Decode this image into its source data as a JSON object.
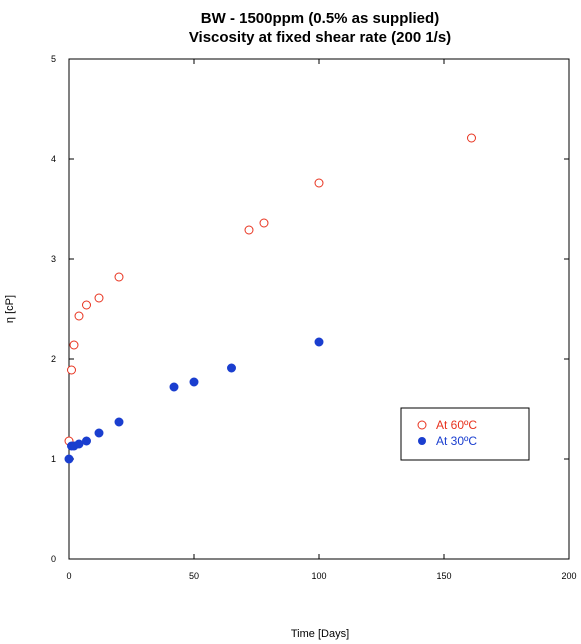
{
  "chart_data": {
    "type": "scatter",
    "title": "BW - 1500ppm (0.5% as supplied)",
    "subtitle": "Viscosity at fixed shear rate (200 1/s)",
    "xlabel": "Time [Days]",
    "ylabel": "η [cP]",
    "xlim": [
      0,
      200
    ],
    "ylim": [
      0,
      5
    ],
    "x_ticks": [
      0,
      50,
      100,
      150,
      200
    ],
    "y_ticks": [
      0,
      1,
      2,
      3,
      4,
      5
    ],
    "grid": false,
    "legend_position": "right",
    "series": [
      {
        "name": "At 60ºC",
        "marker": "open-circle",
        "color": "#e8321e",
        "x": [
          0,
          1,
          2,
          4,
          7,
          12,
          20,
          72,
          78,
          100,
          161
        ],
        "y": [
          1.18,
          1.89,
          2.14,
          2.43,
          2.54,
          2.61,
          2.82,
          3.29,
          3.36,
          3.76,
          4.21
        ]
      },
      {
        "name": "At 30ºC",
        "marker": "filled-circle",
        "color": "#1a3ecf",
        "x": [
          0,
          1,
          2,
          4,
          7,
          12,
          20,
          42,
          50,
          65,
          100
        ],
        "y": [
          1.0,
          1.13,
          1.13,
          1.15,
          1.18,
          1.26,
          1.37,
          1.72,
          1.77,
          1.91,
          2.17
        ]
      }
    ]
  }
}
